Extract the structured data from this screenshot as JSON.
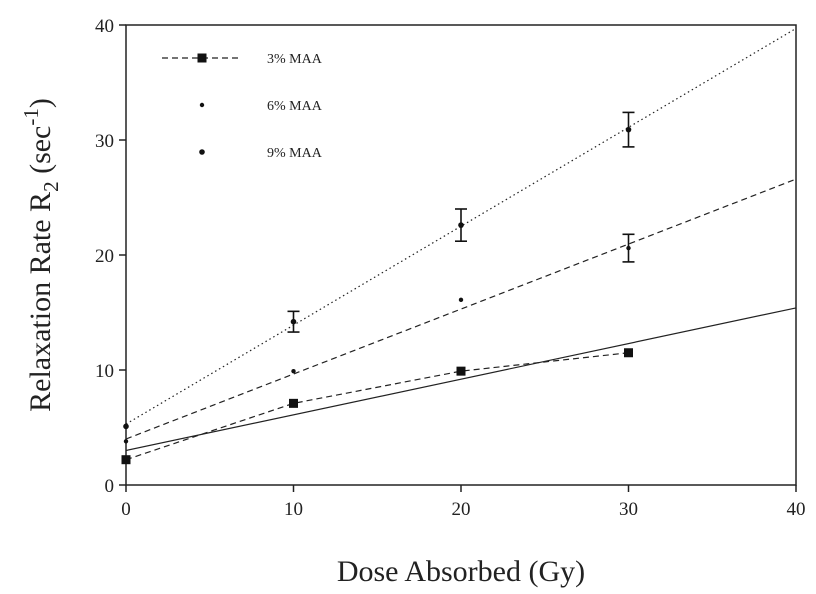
{
  "chart_data": {
    "type": "scatter",
    "xlabel": "Dose Absorbed (Gy)",
    "ylabel": {
      "text": "Relaxation Rate R",
      "subscript": "2",
      "unit_open": " (sec",
      "superscript": "-1",
      "unit_close": ")"
    },
    "xlim": [
      0,
      40
    ],
    "ylim": [
      0,
      40
    ],
    "x_ticks": [
      "0",
      "10",
      "20",
      "30",
      "40"
    ],
    "y_ticks": [
      "0",
      "10",
      "20",
      "30",
      "40"
    ],
    "grid": false,
    "legend_position": "top-left",
    "series": [
      {
        "name": "3% MAA",
        "marker": "square",
        "x": [
          0,
          10,
          20,
          30
        ],
        "y": [
          2.2,
          7.1,
          9.9,
          11.5
        ],
        "connect_points": true,
        "fit": {
          "intercept": 3.0,
          "slope": 0.31,
          "style": "solid"
        }
      },
      {
        "name": "6% MAA",
        "marker": "small-dot",
        "x": [
          0,
          10,
          20,
          30
        ],
        "y": [
          3.8,
          9.9,
          16.1,
          20.6
        ],
        "errors": [
          null,
          null,
          null,
          1.2
        ],
        "fit": {
          "intercept": 4.0,
          "slope": 0.565,
          "style": "dashed"
        }
      },
      {
        "name": "9% MAA",
        "marker": "dot",
        "x": [
          0,
          10,
          20,
          30
        ],
        "y": [
          5.1,
          14.2,
          22.6,
          30.9
        ],
        "errors": [
          null,
          0.9,
          1.4,
          1.5
        ],
        "fit": {
          "intercept": 5.3,
          "slope": 0.86,
          "style": "dotted"
        }
      }
    ]
  }
}
